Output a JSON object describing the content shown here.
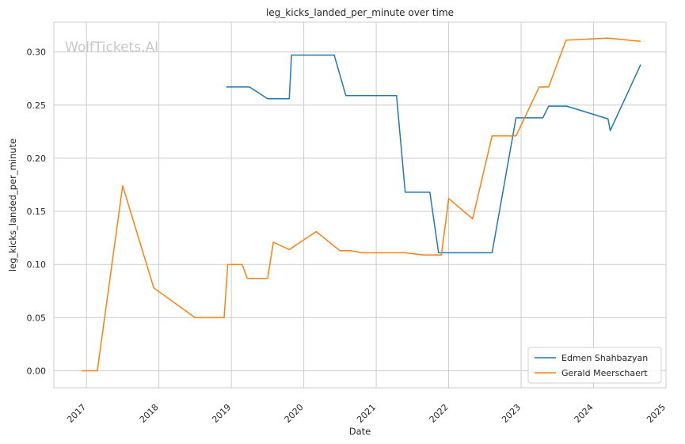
{
  "chart_data": {
    "type": "line",
    "title": "leg_kicks_landed_per_minute over time",
    "xlabel": "Date",
    "ylabel": "leg_kicks_landed_per_minute",
    "watermark": "WolfTickets.AI",
    "xlim": [
      2016.55,
      2025.0
    ],
    "ylim": [
      -0.016,
      0.328
    ],
    "x_ticks": [
      2017,
      2018,
      2019,
      2020,
      2021,
      2022,
      2023,
      2024,
      2025
    ],
    "x_tick_labels": [
      "2017",
      "2018",
      "2019",
      "2020",
      "2021",
      "2022",
      "2023",
      "2024",
      "2025"
    ],
    "y_ticks": [
      0.0,
      0.05,
      0.1,
      0.15,
      0.2,
      0.25,
      0.3
    ],
    "y_tick_labels": [
      "0.00",
      "0.05",
      "0.10",
      "0.15",
      "0.20",
      "0.25",
      "0.30"
    ],
    "grid": true,
    "legend_position": "bottom-right",
    "series": [
      {
        "name": "Edmen Shahbazyan",
        "color": "#1f77b4",
        "x": [
          2018.93,
          2019.25,
          2019.5,
          2019.8,
          2019.83,
          2020.13,
          2020.42,
          2020.58,
          2021.0,
          2021.28,
          2021.4,
          2021.74,
          2021.86,
          2022.0,
          2022.6,
          2022.93,
          2023.0,
          2023.3,
          2023.38,
          2023.63,
          2024.2,
          2024.23,
          2024.65
        ],
        "y": [
          0.267,
          0.267,
          0.256,
          0.256,
          0.297,
          0.297,
          0.297,
          0.259,
          0.259,
          0.259,
          0.168,
          0.168,
          0.111,
          0.111,
          0.111,
          0.238,
          0.238,
          0.238,
          0.249,
          0.249,
          0.237,
          0.226,
          0.288
        ]
      },
      {
        "name": "Gerald Meerschaert",
        "color": "#ff7f0e",
        "x": [
          2016.93,
          2017.15,
          2017.5,
          2017.93,
          2018.5,
          2018.9,
          2018.95,
          2019.15,
          2019.22,
          2019.5,
          2019.58,
          2019.8,
          2020.17,
          2020.5,
          2020.65,
          2020.8,
          2021.4,
          2021.65,
          2021.9,
          2022.0,
          2022.33,
          2022.6,
          2022.93,
          2023.25,
          2023.38,
          2023.62,
          2024.2,
          2024.65
        ],
        "y": [
          0.0,
          0.0,
          0.174,
          0.078,
          0.05,
          0.05,
          0.1,
          0.1,
          0.087,
          0.087,
          0.121,
          0.114,
          0.131,
          0.113,
          0.113,
          0.111,
          0.111,
          0.109,
          0.109,
          0.162,
          0.143,
          0.221,
          0.221,
          0.267,
          0.267,
          0.311,
          0.313,
          0.31
        ]
      }
    ]
  }
}
